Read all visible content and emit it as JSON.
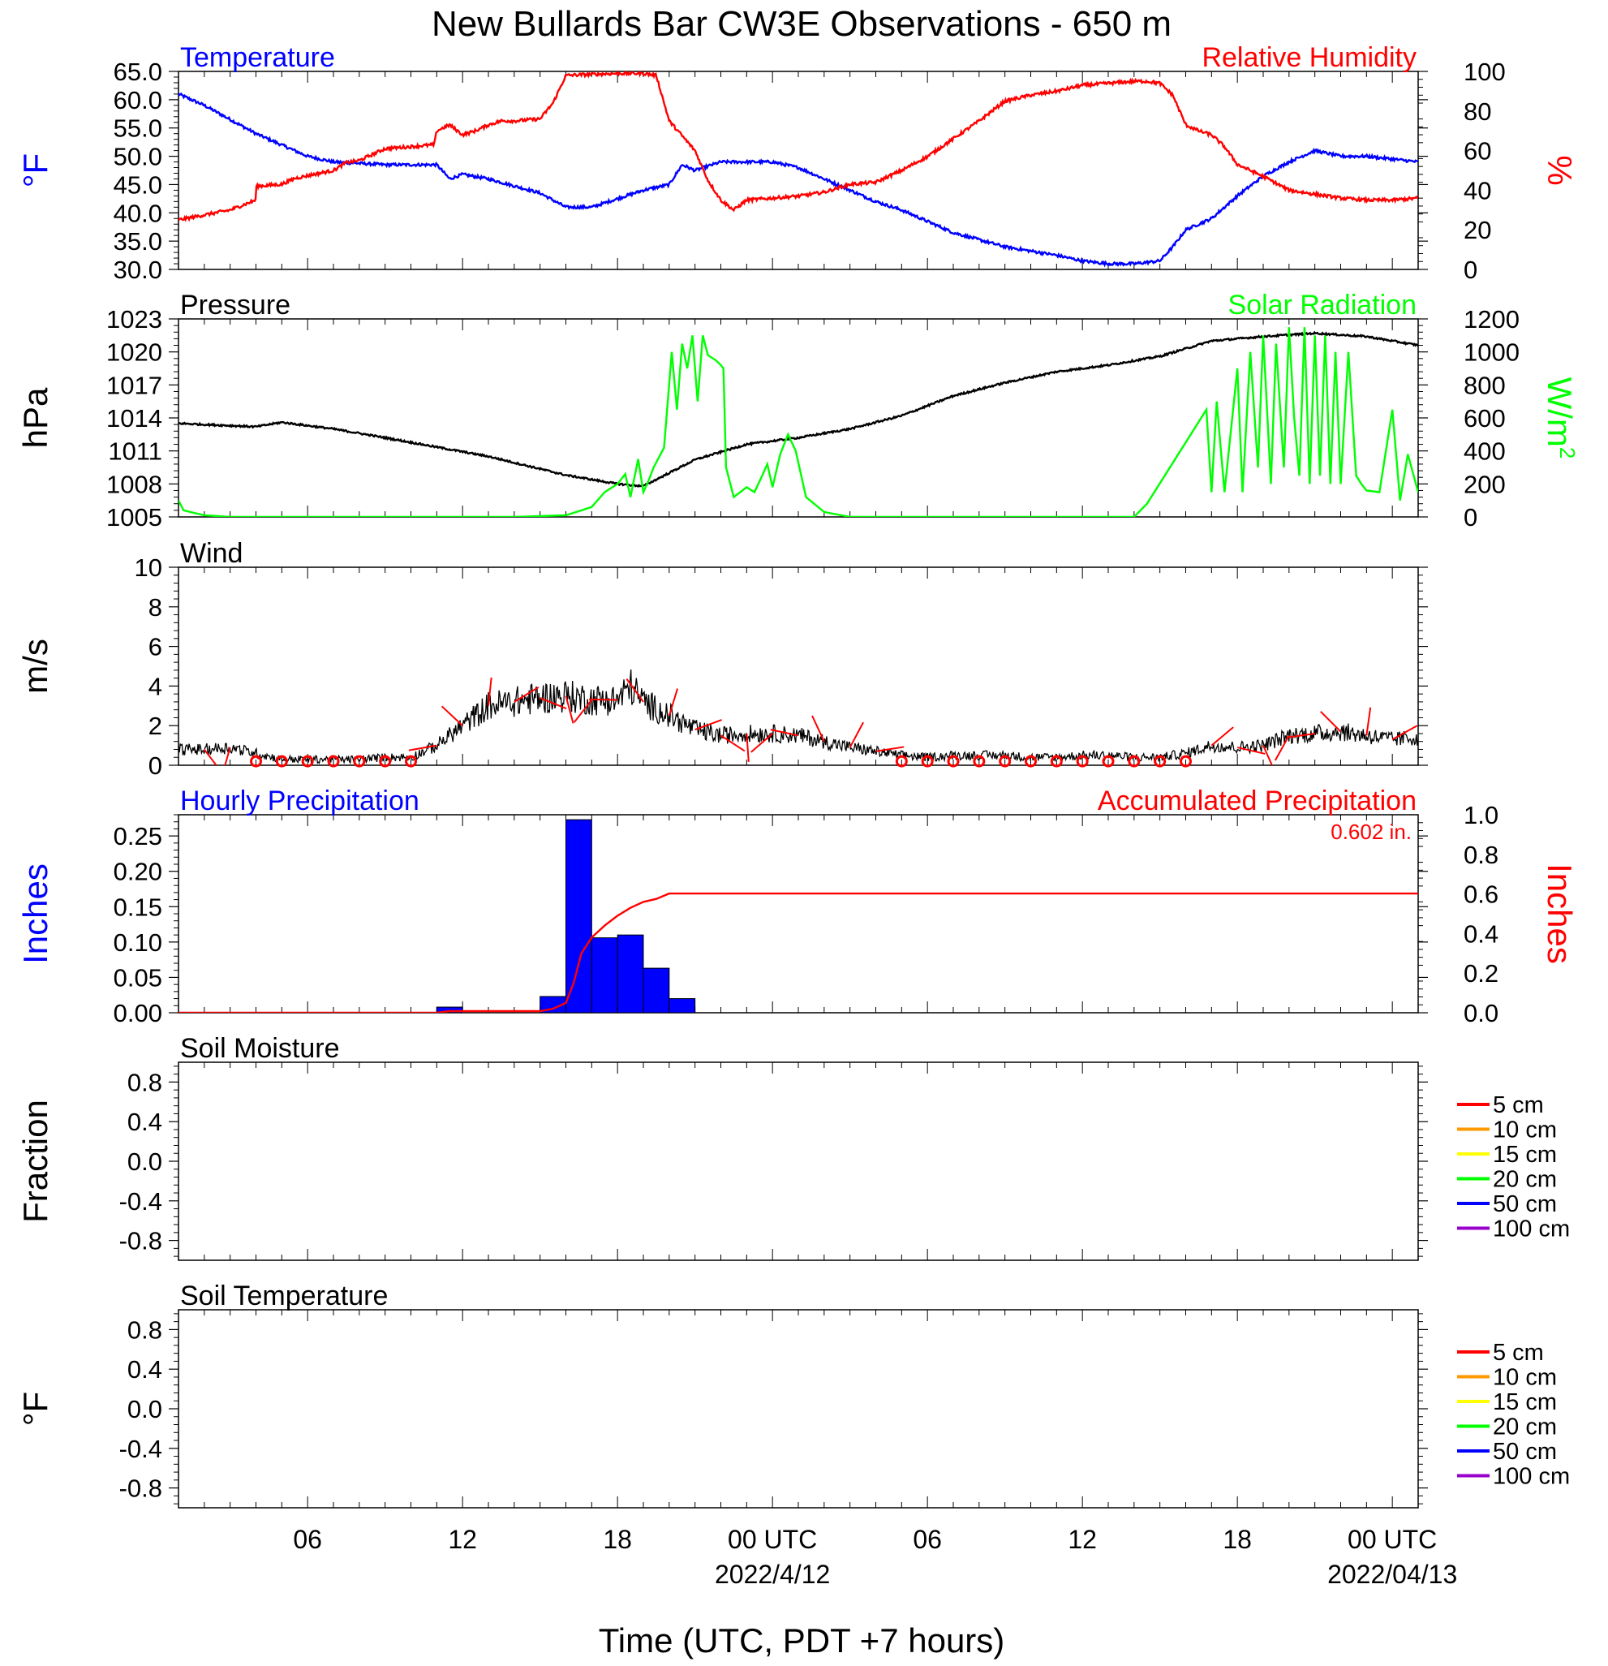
{
  "title": "New Bullards Bar CW3E Observations - 650 m",
  "xaxis": {
    "label": "Time (UTC, PDT +7 hours)",
    "ticks": [
      "06",
      "12",
      "18",
      "00 UTC",
      "06",
      "12",
      "18",
      "00 UTC"
    ],
    "dates": [
      "2022/4/12",
      "2022/04/13"
    ],
    "start": "2022-04-11T01:00Z",
    "end": "2022-04-13T01:00Z"
  },
  "colors": {
    "temperature": "#0000ff",
    "humidity": "#ff0000",
    "pressure": "#000000",
    "solar": "#00ff00",
    "wind": "#000000",
    "wind_barb": "#ff0000",
    "hourly_precip": "#0000ff",
    "accum_precip": "#ff0000"
  },
  "legend": {
    "soil_labels": [
      "5 cm",
      "10 cm",
      "15 cm",
      "20 cm",
      "50 cm",
      "100 cm"
    ],
    "soil_colors": [
      "#ff0000",
      "#ff9900",
      "#ffff00",
      "#00ff00",
      "#0000ff",
      "#9900cc"
    ]
  },
  "chart_data": [
    {
      "type": "line",
      "panel": "temperature-humidity",
      "left_title": "Temperature",
      "right_title": "Relative Humidity",
      "ylabel_left": "°F",
      "ylabel_right": "%",
      "ylim_left": [
        30,
        65
      ],
      "ylim_right": [
        0,
        100
      ],
      "yticks_left": [
        "30.0",
        "35.0",
        "40.0",
        "45.0",
        "50.0",
        "55.0",
        "60.0",
        "65.0"
      ],
      "yticks_right": [
        "0",
        "20",
        "40",
        "60",
        "80",
        "100"
      ],
      "series": [
        {
          "name": "Temperature",
          "axis": "left",
          "noise": 0.25,
          "x": [
            0,
            1,
            3,
            5,
            6,
            8,
            10,
            10.5,
            11,
            12,
            14,
            15,
            16,
            18,
            19,
            19.5,
            20,
            21,
            23,
            24,
            27,
            28,
            30,
            32,
            34,
            35,
            36,
            37,
            38,
            38.5,
            39,
            40,
            41,
            42,
            43,
            44,
            45,
            46,
            47,
            48
          ],
          "values": [
            61,
            59,
            54,
            50,
            49,
            48.5,
            48.5,
            46,
            46.8,
            46,
            43.5,
            41,
            41,
            44,
            45,
            48.5,
            47.5,
            49,
            49,
            48,
            42,
            40.5,
            36.5,
            34,
            32.5,
            31.5,
            31,
            31,
            31.5,
            34,
            37,
            39,
            43,
            46.5,
            49,
            51,
            50,
            50,
            49.5,
            49
          ]
        },
        {
          "name": "Relative Humidity",
          "axis": "right",
          "noise": 0.8,
          "x": [
            0,
            2,
            2.99,
            3,
            4,
            4.5,
            6,
            6.5,
            7,
            7.5,
            8,
            9,
            9.9,
            10,
            10.5,
            11,
            11.5,
            12,
            12.5,
            13,
            14,
            14.5,
            15,
            17,
            18,
            18.5,
            19,
            20,
            20.5,
            21,
            21.5,
            22,
            23,
            24,
            25,
            26,
            27,
            28,
            29,
            30,
            31,
            32,
            33,
            34,
            35,
            36,
            37,
            37.5,
            38,
            38.5,
            39,
            39.5,
            40,
            40.5,
            41,
            42,
            43,
            44,
            45,
            46,
            47,
            48
          ],
          "values": [
            25,
            30,
            35,
            42,
            43,
            46,
            50,
            54,
            55,
            58,
            61,
            62,
            63,
            70,
            73,
            68,
            70,
            73,
            75,
            75,
            76,
            84,
            98,
            99,
            99,
            98,
            75,
            60,
            45,
            35,
            30,
            35,
            36,
            37,
            39,
            43,
            44,
            50,
            57,
            66,
            75,
            85,
            88,
            90,
            93,
            94,
            95,
            95,
            94,
            88,
            73,
            70,
            68,
            62,
            53,
            47,
            40,
            38,
            36,
            35,
            35,
            36
          ]
        }
      ]
    },
    {
      "type": "line",
      "panel": "pressure-solar",
      "left_title": "Pressure",
      "right_title": "Solar Radiation",
      "ylabel_left": "hPa",
      "ylabel_right": "W/m",
      "ylabel_right_sup": "2",
      "ylim_left": [
        1005,
        1023
      ],
      "ylim_right": [
        0,
        1200
      ],
      "yticks_left": [
        "1005",
        "1008",
        "1011",
        "1014",
        "1017",
        "1020",
        "1023"
      ],
      "yticks_right": [
        "0",
        "200",
        "400",
        "600",
        "800",
        "1000",
        "1200"
      ],
      "series": [
        {
          "name": "Pressure",
          "axis": "left",
          "noise": 0.08,
          "x": [
            0,
            2,
            3,
            4,
            6,
            8,
            12,
            15,
            17,
            18,
            19,
            20,
            22,
            24,
            26,
            28,
            30,
            32,
            34,
            36,
            38,
            40,
            42,
            44,
            46,
            48
          ],
          "values": [
            1013.5,
            1013.3,
            1013.2,
            1013.6,
            1013,
            1012.2,
            1010.5,
            1008.8,
            1008,
            1007.8,
            1009,
            1010.2,
            1011.6,
            1012.2,
            1013,
            1014.2,
            1016,
            1017.2,
            1018.2,
            1018.8,
            1019.6,
            1021,
            1021.4,
            1021.7,
            1021.4,
            1020.6
          ]
        },
        {
          "name": "Solar Radiation",
          "axis": "right",
          "noise": 0,
          "x": [
            0,
            0.2,
            1,
            2,
            13,
            15,
            16,
            16.5,
            17,
            17.3,
            17.5,
            17.8,
            18,
            18.2,
            18.4,
            18.8,
            19.1,
            19.3,
            19.5,
            19.7,
            19.9,
            20.1,
            20.3,
            20.5,
            20.8,
            21,
            21.1,
            21.2,
            21.5,
            22,
            22.3,
            22.6,
            22.8,
            23,
            23.3,
            23.6,
            23.9,
            24.3,
            25,
            26,
            27,
            30,
            35,
            37,
            37.5,
            39.8,
            40,
            40.2,
            40.5,
            41,
            41.2,
            41.5,
            41.8,
            42,
            42.3,
            42.5,
            42.8,
            43,
            43.2,
            43.4,
            43.6,
            43.8,
            44,
            44.2,
            44.4,
            44.6,
            44.8,
            45,
            45.3,
            45.6,
            45.8,
            46,
            46.5,
            47,
            47.3,
            47.6,
            48
          ],
          "values": [
            100,
            40,
            10,
            0,
            0,
            10,
            60,
            150,
            200,
            260,
            120,
            350,
            150,
            220,
            300,
            420,
            1000,
            650,
            1050,
            900,
            1100,
            700,
            1100,
            980,
            950,
            920,
            900,
            300,
            120,
            180,
            150,
            250,
            320,
            180,
            380,
            500,
            400,
            120,
            30,
            0,
            0,
            0,
            0,
            0,
            80,
            650,
            150,
            700,
            150,
            900,
            150,
            1000,
            300,
            1100,
            200,
            1050,
            300,
            1150,
            600,
            250,
            1150,
            200,
            1100,
            250,
            1100,
            200,
            1000,
            200,
            1000,
            250,
            200,
            160,
            150,
            650,
            100,
            380,
            150
          ]
        }
      ]
    },
    {
      "type": "line",
      "panel": "wind",
      "left_title": "Wind",
      "ylabel_left": "m/s",
      "ylim_left": [
        0,
        10
      ],
      "yticks_left": [
        "0",
        "2",
        "4",
        "6",
        "8",
        "10"
      ],
      "series": [
        {
          "name": "Wind",
          "axis": "left",
          "noise": 0.45,
          "x": [
            0,
            1,
            2,
            3,
            4,
            5,
            6,
            7,
            8,
            9,
            10,
            11,
            12,
            13,
            14,
            15,
            16,
            17,
            17.5,
            18,
            19,
            20,
            21,
            22,
            23,
            24,
            25,
            26,
            27,
            28,
            29,
            30,
            31,
            32,
            33,
            34,
            35,
            36,
            37,
            38,
            39,
            40,
            41,
            42,
            43,
            44,
            45,
            46,
            47,
            48
          ],
          "values": [
            0.8,
            0.8,
            0.9,
            0.6,
            0.3,
            0.3,
            0.3,
            0.3,
            0.4,
            0.4,
            1.0,
            2.0,
            3.0,
            3.2,
            3.4,
            3.5,
            3.3,
            3.3,
            4.0,
            3.2,
            2.5,
            1.8,
            1.5,
            1.6,
            1.6,
            1.5,
            1.2,
            0.9,
            0.7,
            0.5,
            0.4,
            0.5,
            0.5,
            0.5,
            0.4,
            0.4,
            0.5,
            0.5,
            0.4,
            0.4,
            0.6,
            1.0,
            0.9,
            1.0,
            1.5,
            1.6,
            1.7,
            1.5,
            1.3,
            1.4
          ]
        }
      ]
    },
    {
      "type": "bar",
      "panel": "precipitation",
      "left_title": "Hourly Precipitation",
      "right_title": "Accumulated Precipitation",
      "annotation": "0.602 in.",
      "ylabel_left": "Inches",
      "ylabel_right": "Inches",
      "ylim_left": [
        0,
        0.28
      ],
      "ylim_right": [
        0,
        1.0
      ],
      "yticks_left": [
        "0.00",
        "0.05",
        "0.10",
        "0.15",
        "0.20",
        "0.25"
      ],
      "yticks_right": [
        "0.0",
        "0.2",
        "0.4",
        "0.6",
        "0.8",
        "1.0"
      ],
      "bars": {
        "name": "Hourly Precipitation",
        "start_hours": [
          10,
          14,
          15,
          16,
          17,
          18,
          19
        ],
        "values": [
          0.008,
          0.023,
          0.273,
          0.106,
          0.11,
          0.063,
          0.02
        ]
      },
      "series": [
        {
          "name": "Accumulated Precipitation",
          "axis": "right",
          "noise": 0,
          "x": [
            0,
            10,
            10.5,
            14,
            14.5,
            15,
            15.3,
            15.6,
            16,
            16.5,
            17,
            17.5,
            18,
            18.5,
            19,
            48
          ],
          "values": [
            0,
            0,
            0.008,
            0.008,
            0.02,
            0.05,
            0.15,
            0.3,
            0.38,
            0.44,
            0.49,
            0.53,
            0.56,
            0.575,
            0.602,
            0.602
          ]
        }
      ]
    },
    {
      "type": "line",
      "panel": "soil-moisture",
      "left_title": "Soil Moisture",
      "ylabel_left": "Fraction",
      "ylim_left": [
        -1,
        1
      ],
      "yticks_left": [
        "-0.8",
        "-0.4",
        "0.0",
        "0.4",
        "0.8"
      ],
      "series": []
    },
    {
      "type": "line",
      "panel": "soil-temperature",
      "left_title": "Soil Temperature",
      "ylabel_left": "°F",
      "ylim_left": [
        -1,
        1
      ],
      "yticks_left": [
        "-0.8",
        "-0.4",
        "0.0",
        "0.4",
        "0.8"
      ],
      "series": []
    }
  ]
}
